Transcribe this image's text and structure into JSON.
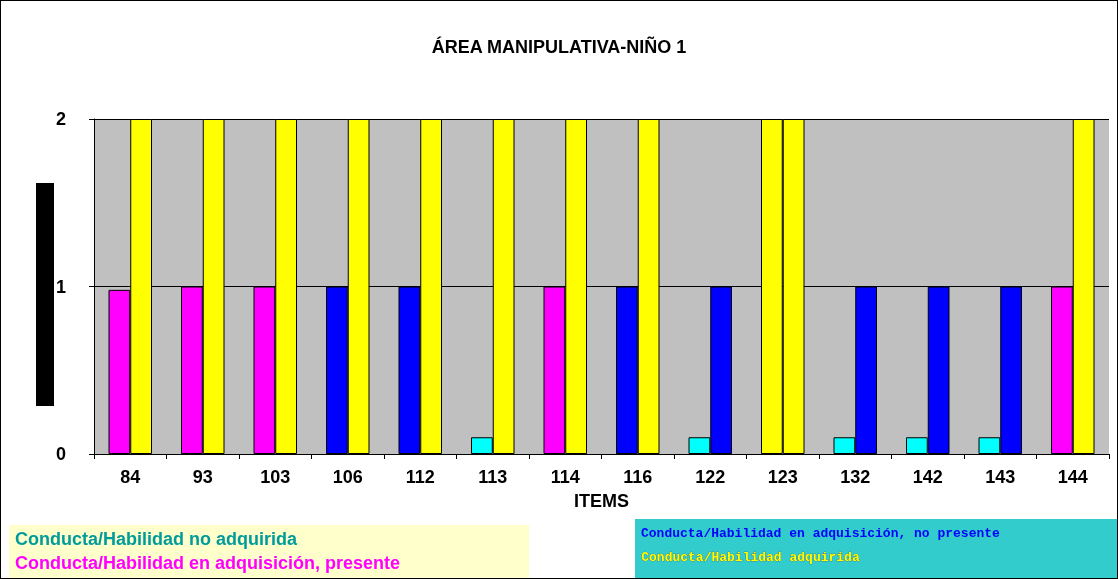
{
  "chart_data": {
    "type": "bar",
    "title": "ÁREA MANIPULATIVA-NIÑO 1",
    "xlabel": "ITEMS",
    "categories": [
      "84",
      "93",
      "103",
      "106",
      "112",
      "113",
      "114",
      "116",
      "122",
      "123",
      "132",
      "142",
      "143",
      "144"
    ],
    "series": [
      {
        "colors": [
          "#ff00ff",
          "#ff00ff",
          "#ff00ff",
          "#0000ff",
          "#0000ff",
          "#00ffff",
          "#ff00ff",
          "#0000ff",
          "#00ffff",
          "#ffff00",
          "#00ffff",
          "#00ffff",
          "#00ffff",
          "#ff00ff"
        ],
        "values": [
          0.98,
          1,
          1,
          1,
          1,
          0.1,
          1,
          1,
          0.1,
          2,
          0.1,
          0.1,
          0.1,
          1
        ]
      },
      {
        "colors": [
          "#ffff00",
          "#ffff00",
          "#ffff00",
          "#ffff00",
          "#ffff00",
          "#ffff00",
          "#ffff00",
          "#ffff00",
          "#0000ff",
          "#ffff00",
          "#0000ff",
          "#0000ff",
          "#0000ff",
          "#ffff00"
        ],
        "values": [
          2,
          2,
          2,
          2,
          2,
          2,
          2,
          2,
          1,
          2,
          1,
          1,
          1,
          2
        ]
      }
    ],
    "annotations": [
      "Conducta/Habilidad no adquirida",
      "Conducta/Habilidad en adquisición, presente",
      "Conducta/Habilidad en adquisición, no presente",
      "Conducta/Habilidad adquirida"
    ],
    "ylim": [
      0,
      2
    ],
    "yticks": [
      0,
      1,
      2
    ],
    "grid": "y"
  }
}
